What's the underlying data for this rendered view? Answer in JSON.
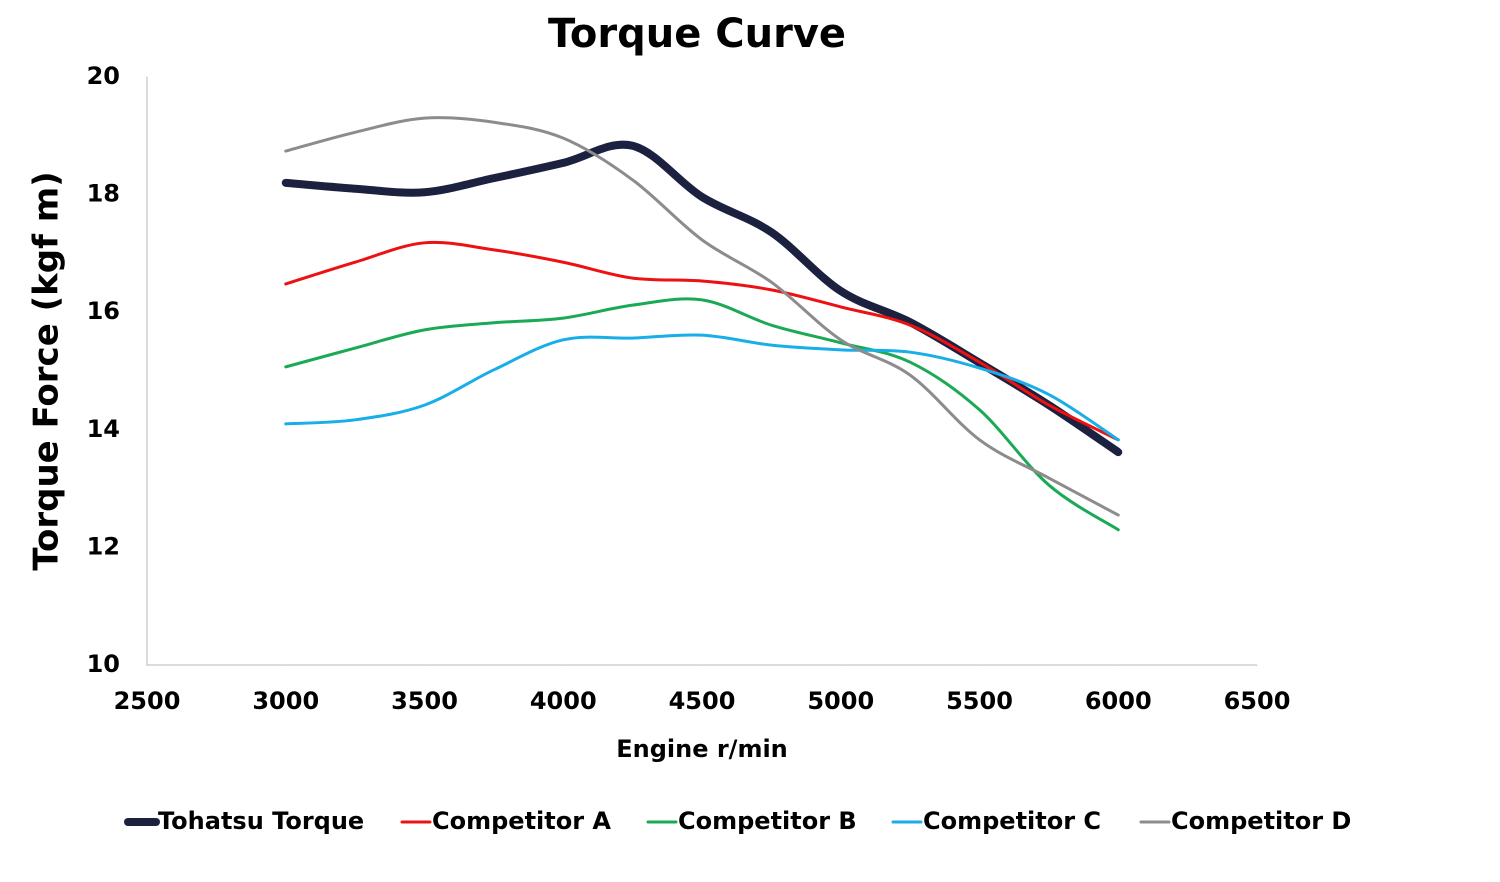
{
  "chart_data": {
    "type": "line",
    "title": "Torque Curve",
    "xlabel": "Engine r/min",
    "ylabel": "Torque Force (kgf m)",
    "x": [
      3000,
      3250,
      3500,
      3750,
      4000,
      4250,
      4500,
      4750,
      5000,
      5250,
      5500,
      5750,
      6000
    ],
    "series": [
      {
        "name": "Tohatsu Torque",
        "color": "#1c2140",
        "line_width": 8,
        "values": [
          18.2,
          18.1,
          18.04,
          18.28,
          18.54,
          18.83,
          17.96,
          17.36,
          16.36,
          15.83,
          15.14,
          14.42,
          13.62
        ]
      },
      {
        "name": "Competitor A",
        "color": "#ee1111",
        "line_width": 3,
        "values": [
          16.48,
          16.85,
          17.18,
          17.06,
          16.85,
          16.58,
          16.53,
          16.38,
          16.09,
          15.78,
          15.15,
          14.42,
          13.83
        ]
      },
      {
        "name": "Competitor B",
        "color": "#1aaa55",
        "line_width": 3,
        "values": [
          15.07,
          15.39,
          15.7,
          15.82,
          15.9,
          16.12,
          16.21,
          15.78,
          15.48,
          15.15,
          14.34,
          13.06,
          12.3
        ]
      },
      {
        "name": "Competitor C",
        "color": "#18aee8",
        "line_width": 3,
        "values": [
          14.1,
          14.17,
          14.42,
          15.02,
          15.53,
          15.56,
          15.61,
          15.44,
          15.36,
          15.32,
          15.05,
          14.6,
          13.83
        ]
      },
      {
        "name": "Competitor D",
        "color": "#8c8c8c",
        "line_width": 3,
        "values": [
          18.74,
          19.06,
          19.3,
          19.23,
          18.96,
          18.25,
          17.23,
          16.51,
          15.53,
          14.93,
          13.83,
          13.18,
          12.55
        ]
      }
    ],
    "xlim": [
      2500,
      6500
    ],
    "xticks": [
      2500,
      3000,
      3500,
      4000,
      4500,
      5000,
      5500,
      6000,
      6500
    ],
    "ylim": [
      10,
      20
    ],
    "yticks": [
      10,
      12,
      14,
      16,
      18,
      20
    ],
    "smooth": true,
    "grid": false,
    "legend": "bottom"
  }
}
